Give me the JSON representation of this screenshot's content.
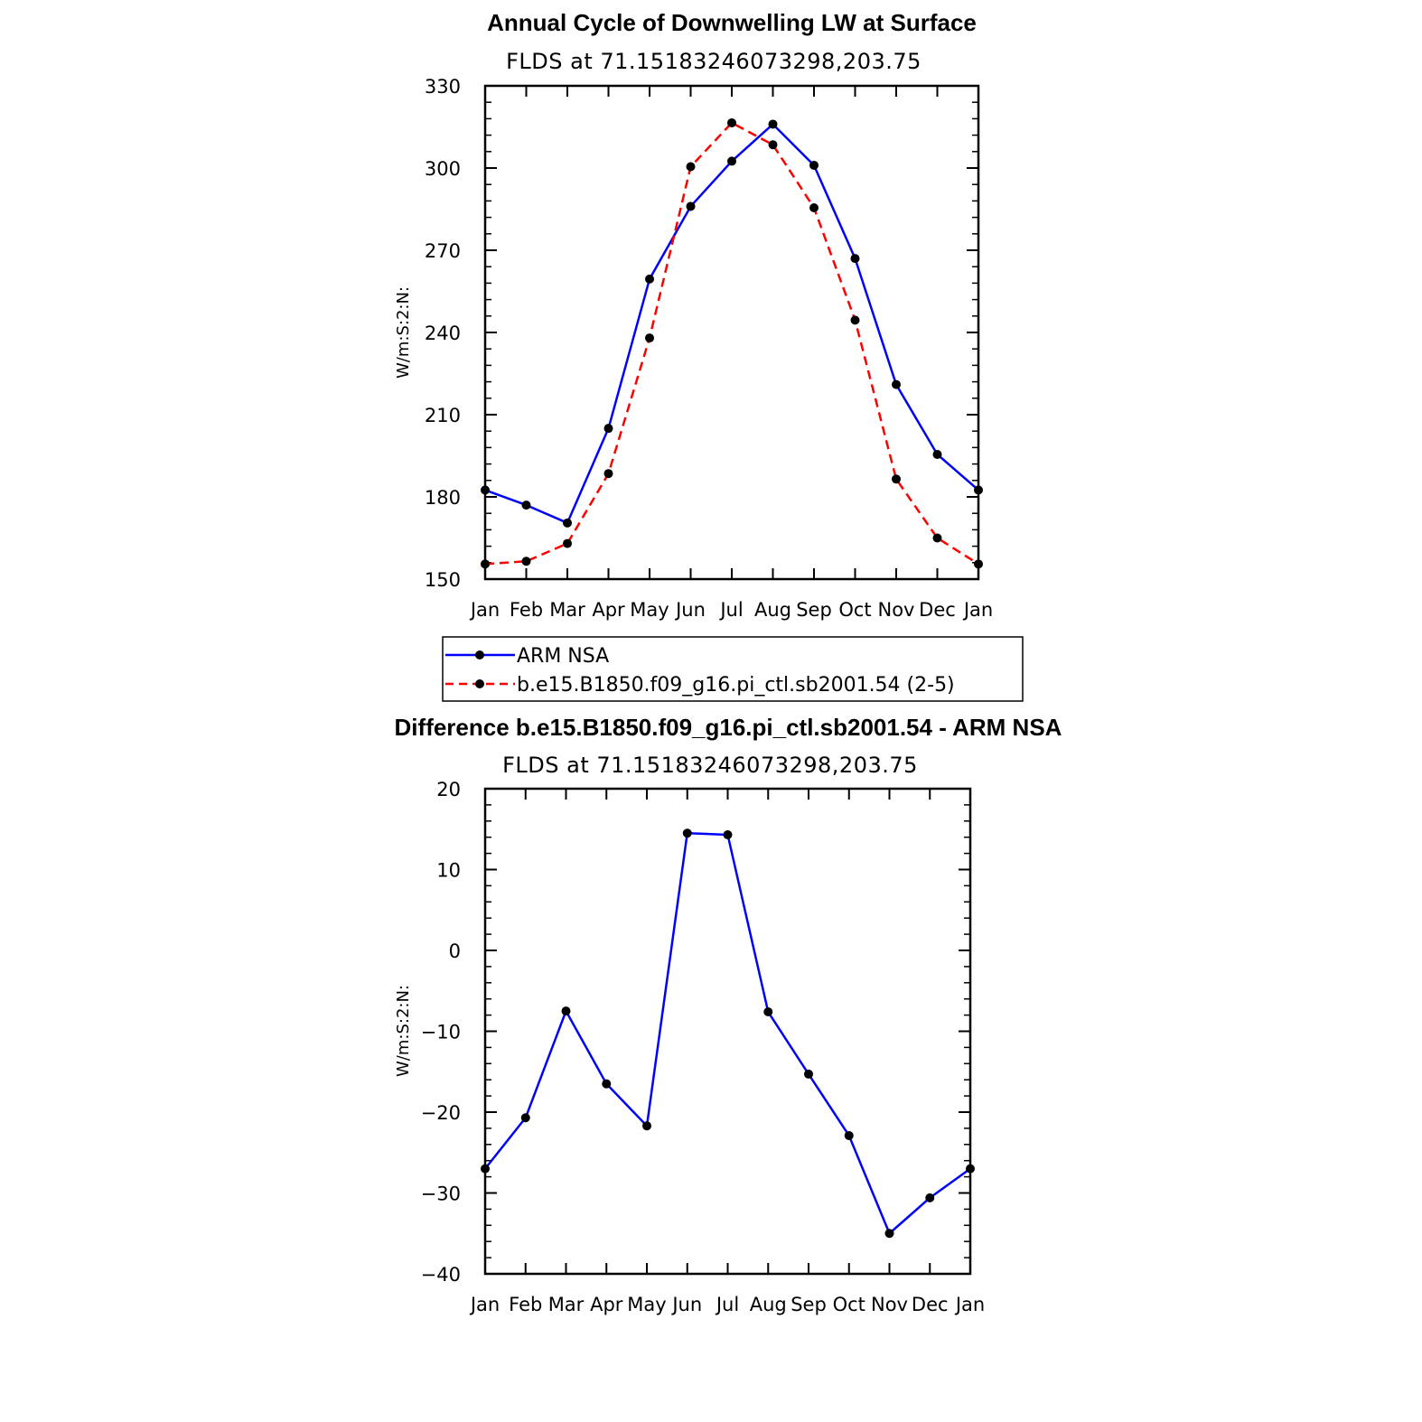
{
  "chart_data": [
    {
      "type": "line",
      "title": "Annual Cycle of Downwelling LW at Surface",
      "subtitle": "FLDS at 71.15183246073298,203.75",
      "ylabel": "W/m:S:2:N:",
      "xlabel": "",
      "categories": [
        "Jan",
        "Feb",
        "Mar",
        "Apr",
        "May",
        "Jun",
        "Jul",
        "Aug",
        "Sep",
        "Oct",
        "Nov",
        "Dec",
        "Jan"
      ],
      "ylim": [
        150,
        330
      ],
      "yticks": [
        "150",
        "180",
        "210",
        "240",
        "270",
        "300",
        "330"
      ],
      "series": [
        {
          "name": "ARM NSA",
          "color": "#0000ff",
          "style": "solid",
          "values": [
            182.5,
            177,
            170.5,
            205,
            259.5,
            286,
            302.5,
            316,
            301,
            267,
            221,
            195.5,
            182.5
          ]
        },
        {
          "name": "b.e15.B1850.f09_g16.pi_ctl.sb2001.54 (2-5)",
          "color": "#ff0000",
          "style": "dashed",
          "values": [
            155.5,
            156.5,
            163,
            188.5,
            238,
            300.5,
            316.5,
            308.5,
            285.5,
            244.5,
            186.5,
            165,
            155.5
          ]
        }
      ],
      "legend": "below"
    },
    {
      "type": "line",
      "title": "Difference b.e15.B1850.f09_g16.pi_ctl.sb2001.54 - ARM NSA",
      "subtitle": "FLDS at 71.15183246073298,203.75",
      "ylabel": "W/m:S:2:N:",
      "xlabel": "",
      "categories": [
        "Jan",
        "Feb",
        "Mar",
        "Apr",
        "May",
        "Jun",
        "Jul",
        "Aug",
        "Sep",
        "Oct",
        "Nov",
        "Dec",
        "Jan"
      ],
      "ylim": [
        -40,
        20
      ],
      "yticks": [
        "−40",
        "−30",
        "−20",
        "−10",
        "0",
        "10",
        "20"
      ],
      "series": [
        {
          "name": "Difference",
          "color": "#0000ff",
          "style": "solid",
          "values": [
            -27,
            -20.7,
            -7.5,
            -16.5,
            -21.7,
            14.5,
            14.3,
            -7.6,
            -15.3,
            -22.9,
            -35,
            -30.6,
            -27
          ]
        }
      ]
    }
  ]
}
